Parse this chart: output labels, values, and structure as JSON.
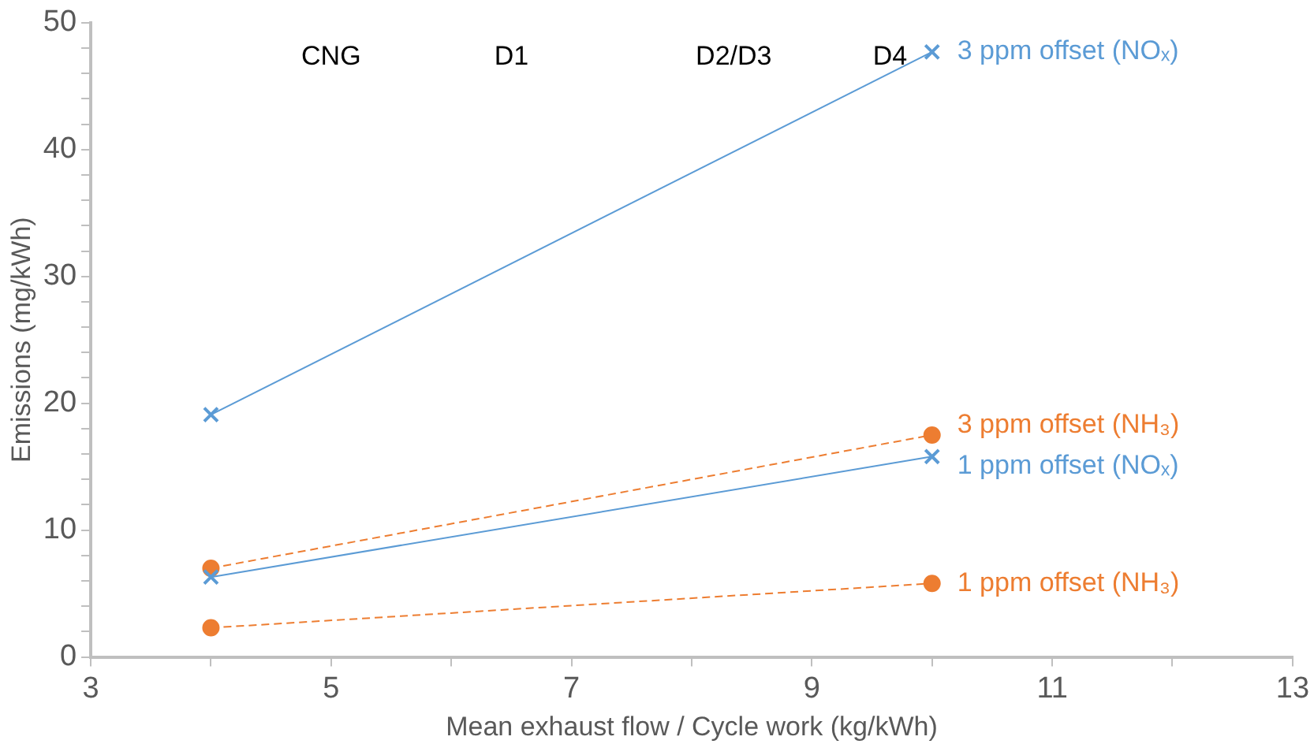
{
  "chart_data": {
    "type": "line",
    "xlabel": "Mean exhaust flow / Cycle work (kg/kWh)",
    "ylabel": "Emissions (mg/kWh)",
    "x": [
      4,
      10
    ],
    "series": [
      {
        "name": "3 ppm offset (NOₓ)",
        "color": "#5b9bd5",
        "values": [
          19.1,
          47.7
        ],
        "marker": "cross",
        "line_style": "solid"
      },
      {
        "name": "3 ppm offset (NH₃)",
        "color": "#ed7d31",
        "values": [
          7.0,
          17.5
        ],
        "marker": "circle",
        "line_style": "dashed"
      },
      {
        "name": "1 ppm offset (NOₓ)",
        "color": "#5b9bd5",
        "values": [
          6.3,
          15.8
        ],
        "marker": "cross",
        "line_style": "solid"
      },
      {
        "name": "1 ppm offset (NH₃)",
        "color": "#ed7d31",
        "values": [
          2.3,
          5.8
        ],
        "marker": "circle",
        "line_style": "dashed"
      }
    ],
    "xlim": [
      3,
      13
    ],
    "xticks": [
      3,
      {
        "value": 4,
        "label": null
      },
      5,
      {
        "value": 6,
        "label": null
      },
      7,
      {
        "value": 8,
        "label": null
      },
      9,
      {
        "value": 10,
        "label": null
      },
      11,
      {
        "value": 12,
        "label": null
      },
      13
    ],
    "ylim": [
      0,
      50
    ],
    "yticks": [
      0,
      {
        "value": 2,
        "label": null
      },
      {
        "value": 4,
        "label": null
      },
      {
        "value": 6,
        "label": null
      },
      {
        "value": 8,
        "label": null
      },
      10,
      {
        "value": 12,
        "label": null
      },
      {
        "value": 14,
        "label": null
      },
      {
        "value": 16,
        "label": null
      },
      {
        "value": 18,
        "label": null
      },
      20,
      {
        "value": 22,
        "label": null
      },
      {
        "value": 24,
        "label": null
      },
      {
        "value": 26,
        "label": null
      },
      {
        "value": 28,
        "label": null
      },
      30,
      {
        "value": 32,
        "label": null
      },
      {
        "value": 34,
        "label": null
      },
      {
        "value": 36,
        "label": null
      },
      {
        "value": 38,
        "label": null
      },
      40,
      {
        "value": 42,
        "label": null
      },
      {
        "value": 44,
        "label": null
      },
      {
        "value": 46,
        "label": null
      },
      {
        "value": 48,
        "label": null
      },
      50
    ],
    "annotations": [
      "CNG",
      "D1",
      "D2/D3",
      "D4"
    ],
    "grid": false,
    "legend": false
  }
}
